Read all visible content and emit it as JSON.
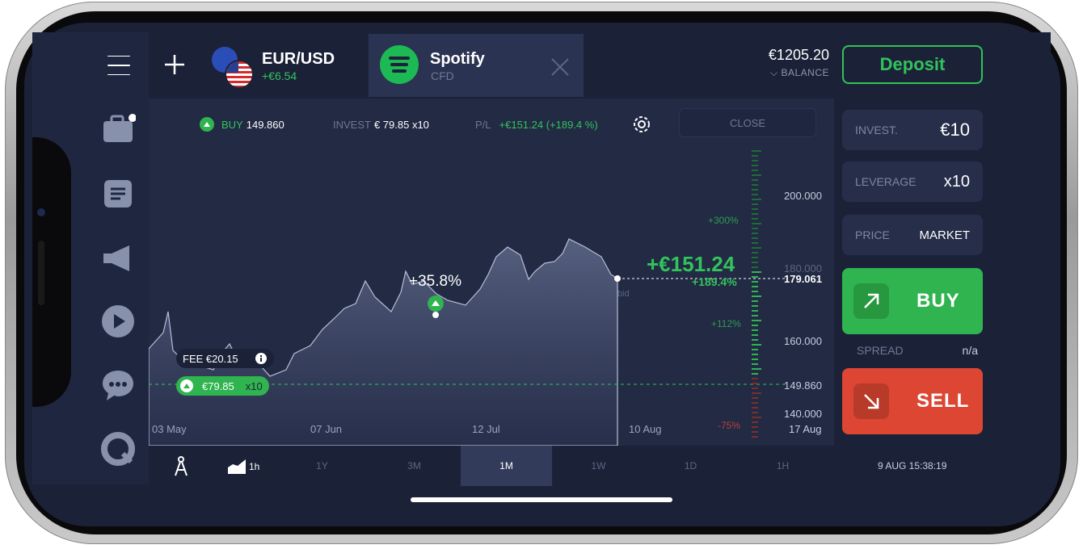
{
  "tabs": {
    "eurusd": {
      "symbol": "EUR/USD",
      "change": "+€6.54"
    },
    "spotify": {
      "name": "Spotify",
      "type": "CFD"
    }
  },
  "account": {
    "balance": "€1205.20",
    "balance_label": "BALANCE",
    "deposit_label": "Deposit"
  },
  "position": {
    "buy_label": "BUY",
    "buy_price": "149.860",
    "invest_label": "INVEST",
    "invest_value": "€ 79.85 x10",
    "pl_label": "P/L",
    "pl_value": "+€151.24 (+189.4 %)",
    "close_label": "CLOSE"
  },
  "trade_panel": {
    "invest_label": "INVEST.",
    "invest_value": "€10",
    "leverage_label": "LEVERAGE",
    "leverage_value": "x10",
    "price_label": "PRICE",
    "price_value": "MARKET",
    "buy_label": "BUY",
    "spread_label": "SPREAD",
    "spread_value": "n/a",
    "sell_label": "SELL"
  },
  "chart": {
    "y_ticks": [
      "200.000",
      "180.000",
      "160.000",
      "140.000"
    ],
    "current_price": "179.061",
    "entry_price": "149.860",
    "x_ticks": [
      "03 May",
      "07 Jun",
      "12 Jul",
      "10 Aug",
      "17 Aug"
    ],
    "profit_big": "+€151.24",
    "profit_pct": "+189.4%",
    "scale_labels": [
      "+300%",
      "+112%",
      "-75%"
    ],
    "fee": "FEE €20.15",
    "entry_invest": "€79.85",
    "entry_leverage": "x10",
    "change_marker": "+35.8%",
    "bid_label": "bid"
  },
  "timeframes": {
    "chart_tf": "1h",
    "items": [
      "1Y",
      "3M",
      "1M",
      "1W",
      "1D",
      "1H"
    ],
    "active": "1M"
  },
  "clock": "9 AUG 15:38:19",
  "colors": {
    "green": "#33c35c",
    "red": "#e0493c",
    "bg": "#1b2238"
  }
}
